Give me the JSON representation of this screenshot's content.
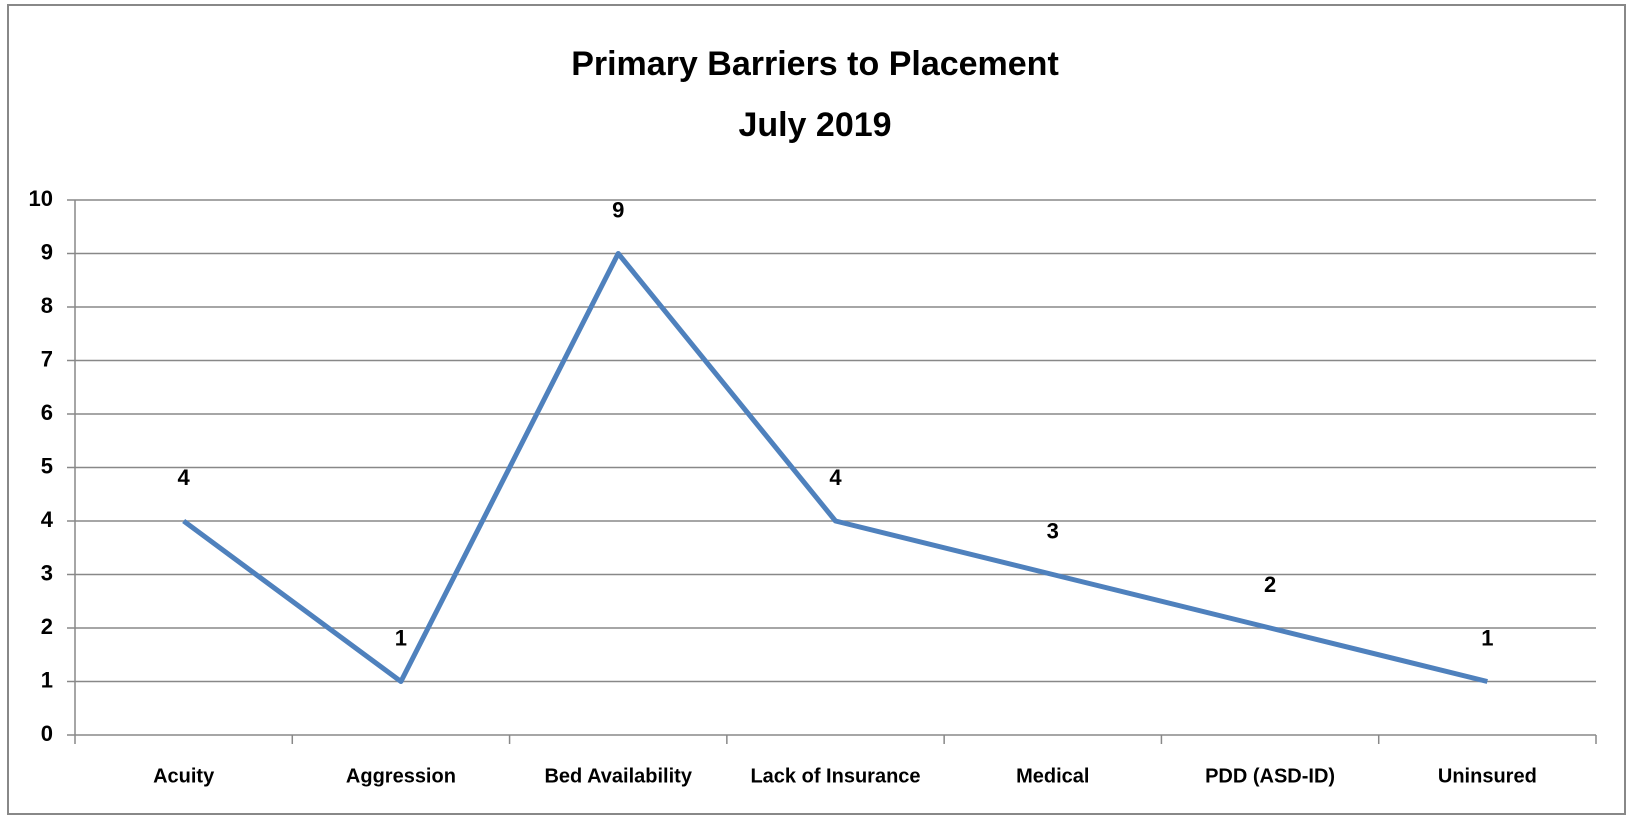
{
  "chart_data": {
    "type": "line",
    "title": "Primary Barriers to Placement",
    "subtitle": "July 2019",
    "categories": [
      "Acuity",
      "Aggression",
      "Bed Availability",
      "Lack of Insurance",
      "Medical",
      "PDD (ASD-ID)",
      "Uninsured"
    ],
    "values": [
      4,
      1,
      9,
      4,
      3,
      2,
      1
    ],
    "color": "#4f81bd",
    "ylim": [
      0,
      10
    ],
    "yticks": [
      0,
      1,
      2,
      3,
      4,
      5,
      6,
      7,
      8,
      9,
      10
    ],
    "grid": true,
    "data_labels": true
  }
}
